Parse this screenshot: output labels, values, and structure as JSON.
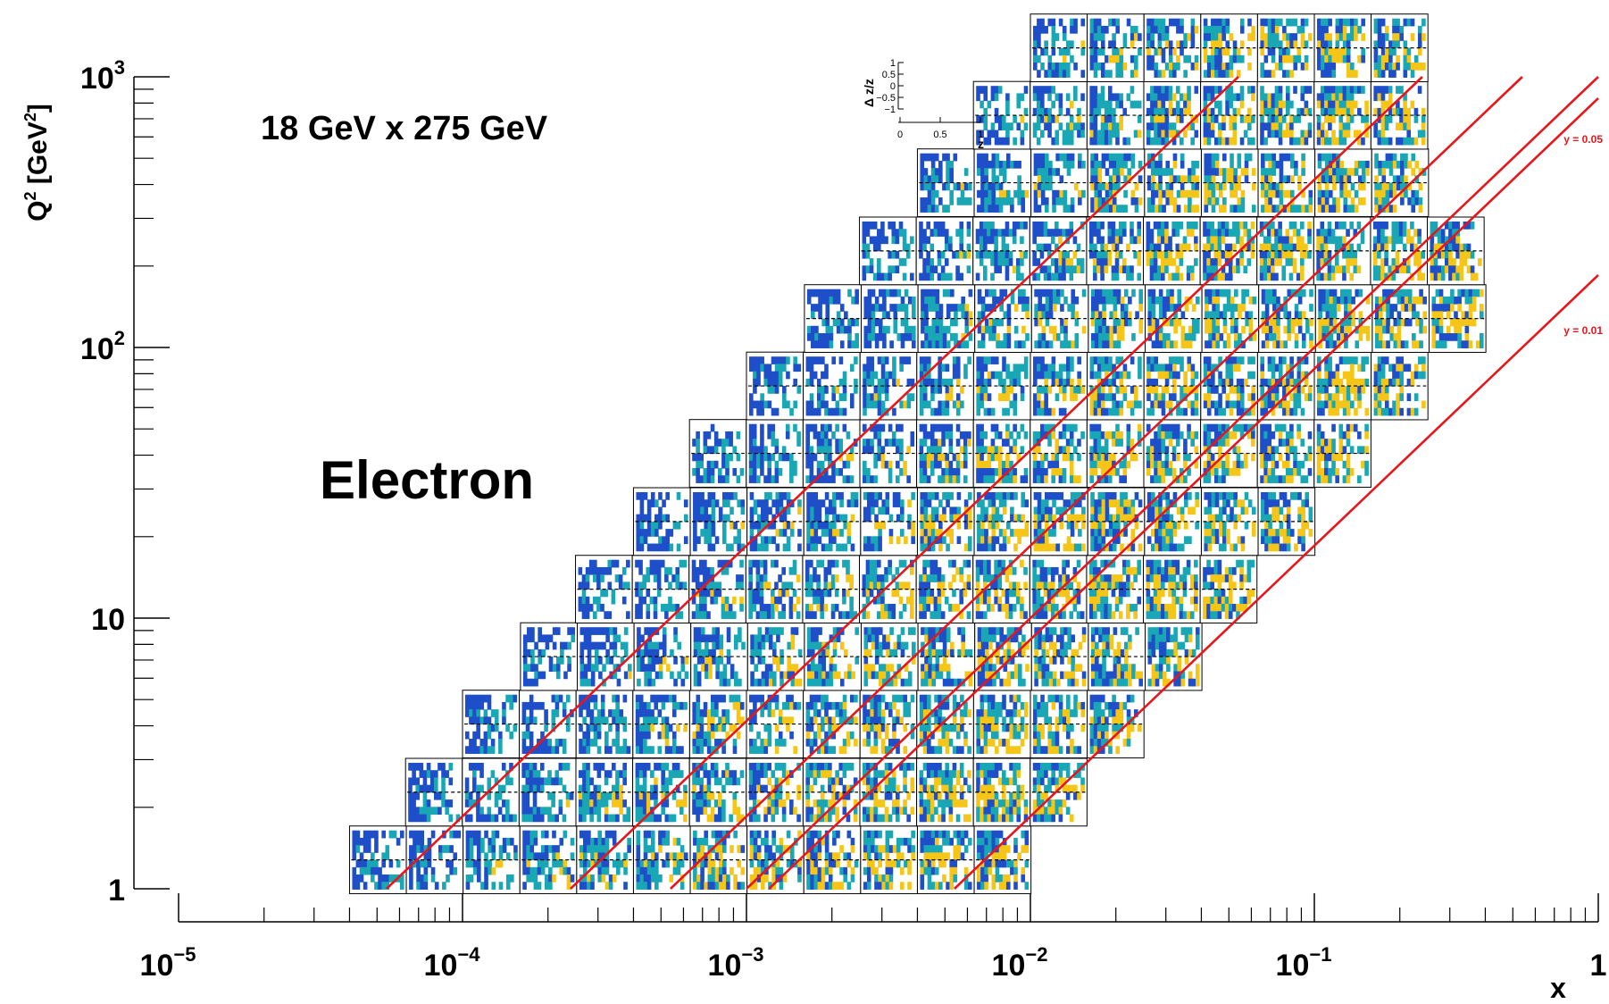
{
  "chart_data": {
    "type": "heatmap",
    "title": "18 GeV x 275 GeV",
    "annotation": "Electron",
    "xlabel": "x",
    "ylabel_base": "Q",
    "ylabel_sup": "2",
    "ylabel_unit_open": " [GeV",
    "ylabel_unit_sup": "2",
    "ylabel_unit_close": "]",
    "x_scale": "log",
    "y_scale": "log",
    "xlim": [
      1e-05,
      1
    ],
    "ylim": [
      1,
      1000
    ],
    "x_ticks": [
      {
        "value": 1e-05,
        "base": "10",
        "exp": "−5"
      },
      {
        "value": 0.0001,
        "base": "10",
        "exp": "−4"
      },
      {
        "value": 0.001,
        "base": "10",
        "exp": "−3"
      },
      {
        "value": 0.01,
        "base": "10",
        "exp": "−2"
      },
      {
        "value": 0.1,
        "base": "10",
        "exp": "−1"
      },
      {
        "value": 1,
        "base": "1",
        "exp": ""
      }
    ],
    "y_ticks": [
      {
        "value": 1,
        "base": "1",
        "exp": ""
      },
      {
        "value": 10,
        "base": "10",
        "exp": ""
      },
      {
        "value": 100,
        "base": "10",
        "exp": "2"
      },
      {
        "value": 1000,
        "base": "10",
        "exp": "3"
      }
    ],
    "row_q2_centers": [
      1.26,
      2.24,
      4.0,
      7.1,
      12.6,
      22.4,
      40,
      71,
      126,
      224,
      400,
      710,
      1260
    ],
    "rows": [
      {
        "q2_center": 1.26,
        "x_start": 4e-05,
        "n_panels": 12
      },
      {
        "q2_center": 2.24,
        "x_start": 6.3e-05,
        "n_panels": 12
      },
      {
        "q2_center": 4.0,
        "x_start": 0.0001,
        "n_panels": 12
      },
      {
        "q2_center": 7.1,
        "x_start": 0.00016,
        "n_panels": 12
      },
      {
        "q2_center": 12.6,
        "x_start": 0.00025,
        "n_panels": 12
      },
      {
        "q2_center": 22.4,
        "x_start": 0.0004,
        "n_panels": 12
      },
      {
        "q2_center": 40,
        "x_start": 0.00063,
        "n_panels": 12
      },
      {
        "q2_center": 71,
        "x_start": 0.001,
        "n_panels": 12
      },
      {
        "q2_center": 126,
        "x_start": 0.0016,
        "n_panels": 12
      },
      {
        "q2_center": 224,
        "x_start": 0.0025,
        "n_panels": 11
      },
      {
        "q2_center": 400,
        "x_start": 0.004,
        "n_panels": 9
      },
      {
        "q2_center": 710,
        "x_start": 0.0063,
        "n_panels": 8
      },
      {
        "q2_center": 1260,
        "x_start": 0.01,
        "n_panels": 7
      }
    ],
    "y_lines": [
      {
        "label": "",
        "x_at_q2_1": 5.4e-05
      },
      {
        "label": "",
        "x_at_q2_1": 0.00054
      },
      {
        "label": "",
        "x_at_q2_1": 0.001
      },
      {
        "label": "",
        "x_at_q2_1": 0.0054
      },
      {
        "label": "y = 0.05",
        "x_at_q2_1": 0.00024
      },
      {
        "label": "y = 0.01",
        "x_at_q2_1": 0.0012
      }
    ],
    "inset": {
      "ylabel": "Δ z/z",
      "xlabel": "z",
      "x_ticks": [
        "0",
        "0.5",
        "1"
      ],
      "y_ticks": [
        "1",
        "0.5",
        "0",
        "−0.5",
        "−1"
      ],
      "xlim": [
        0,
        1
      ],
      "ylim": [
        -1,
        1
      ]
    },
    "colors": {
      "low": "#1f4fc8",
      "mid": "#1aa7b5",
      "high": "#f5c518",
      "line": "#e8161b"
    }
  }
}
